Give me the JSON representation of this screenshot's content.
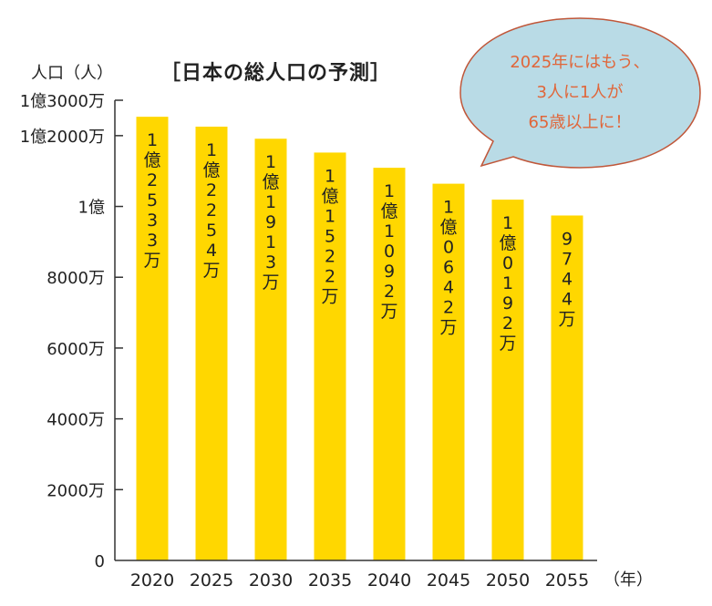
{
  "chart_data": {
    "type": "bar",
    "title": "［日本の総人口の予測］",
    "ylabel": "人口（人）",
    "xunit": "（年）",
    "categories": [
      "2020",
      "2025",
      "2030",
      "2035",
      "2040",
      "2045",
      "2050",
      "2055"
    ],
    "values": [
      125330000,
      122540000,
      119130000,
      115220000,
      110920000,
      106420000,
      101920000,
      97440000
    ],
    "data_labels": [
      "1億2533万",
      "1億2254万",
      "1億1913万",
      "1億1522万",
      "1億1092万",
      "1億0642万",
      "1億0192万",
      "9744万"
    ],
    "ylim": [
      0,
      130000000
    ],
    "yticks": [
      {
        "value": 0,
        "label": "0"
      },
      {
        "value": 20000000,
        "label": "2000万"
      },
      {
        "value": 40000000,
        "label": "4000万"
      },
      {
        "value": 60000000,
        "label": "6000万"
      },
      {
        "value": 80000000,
        "label": "8000万"
      },
      {
        "value": 100000000,
        "label": "1億"
      },
      {
        "value": 120000000,
        "label": "1億2000万"
      },
      {
        "value": 130000000,
        "label": "1億3000万"
      }
    ],
    "grid": false,
    "bar_color": "#ffd700",
    "annotation": {
      "lines": [
        "2025年にはもう、",
        "3人に1人が",
        "65歳以上に！"
      ],
      "text_color": "#e0663a",
      "bubble_color": "#b9dbe6",
      "border_color": "#c0573a"
    }
  }
}
